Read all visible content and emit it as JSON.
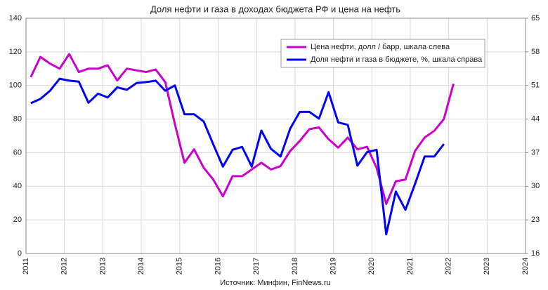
{
  "chart_data": {
    "type": "line",
    "title": "Доля нефти и газа в доходах бюджета РФ и цена на нефть",
    "annotation": "Источник: Минфин, FinNews.ru",
    "x": [
      2011.125,
      2011.375,
      2011.625,
      2011.875,
      2012.125,
      2012.375,
      2012.625,
      2012.875,
      2013.125,
      2013.375,
      2013.625,
      2013.875,
      2014.125,
      2014.375,
      2014.625,
      2014.875,
      2015.125,
      2015.375,
      2015.625,
      2015.875,
      2016.125,
      2016.375,
      2016.625,
      2016.875,
      2017.125,
      2017.375,
      2017.625,
      2017.875,
      2018.125,
      2018.375,
      2018.625,
      2018.875,
      2019.125,
      2019.375,
      2019.625,
      2019.875,
      2020.125,
      2020.375,
      2020.625,
      2020.875,
      2021.125,
      2021.375,
      2021.625,
      2021.875,
      2022.125
    ],
    "series": [
      {
        "name": "Цена нефти, долл / барр, шкала слева",
        "color": "#cc00cc",
        "values": [
          105,
          117,
          113,
          110,
          118.7,
          108,
          110,
          110,
          112,
          103,
          110,
          109,
          108,
          109.5,
          102,
          77,
          54,
          62,
          51,
          44,
          34,
          46,
          46,
          50,
          54,
          50,
          52,
          61,
          67,
          74,
          75,
          68,
          63,
          69,
          62,
          63.5,
          51,
          29.5,
          43,
          44,
          61,
          69,
          73,
          80,
          101
        ]
      },
      {
        "name": "Доля нефти и газа в бюджете, %, шкала справа",
        "color": "#0000ff",
        "axis": "y2",
        "values": [
          47.3,
          48.2,
          49.9,
          52.4,
          52,
          51.8,
          47.4,
          49.3,
          48.5,
          50.6,
          50.1,
          51.5,
          51.7,
          52,
          49.9,
          51,
          45,
          45,
          43.5,
          38.7,
          34.1,
          37.6,
          38.2,
          34.1,
          41.6,
          37.8,
          36.2,
          42,
          45.5,
          45.5,
          44.1,
          49.6,
          43.3,
          42.8,
          34.3,
          37.1,
          37.6,
          20,
          28.9,
          25.1,
          30.5,
          36.2,
          36.2,
          38.8,
          null
        ]
      }
    ],
    "xlim": [
      2011,
      2024
    ],
    "xticks": [
      2011,
      2012,
      2013,
      2014,
      2015,
      2016,
      2017,
      2018,
      2019,
      2020,
      2021,
      2022,
      2023,
      2024
    ],
    "ylim": [
      0,
      140
    ],
    "yticks": [
      0,
      20,
      40,
      60,
      80,
      100,
      120,
      140
    ],
    "y2lim": [
      16,
      65
    ],
    "y2ticks": [
      16,
      23,
      30,
      37,
      44,
      51,
      58,
      65
    ],
    "grid": true
  }
}
